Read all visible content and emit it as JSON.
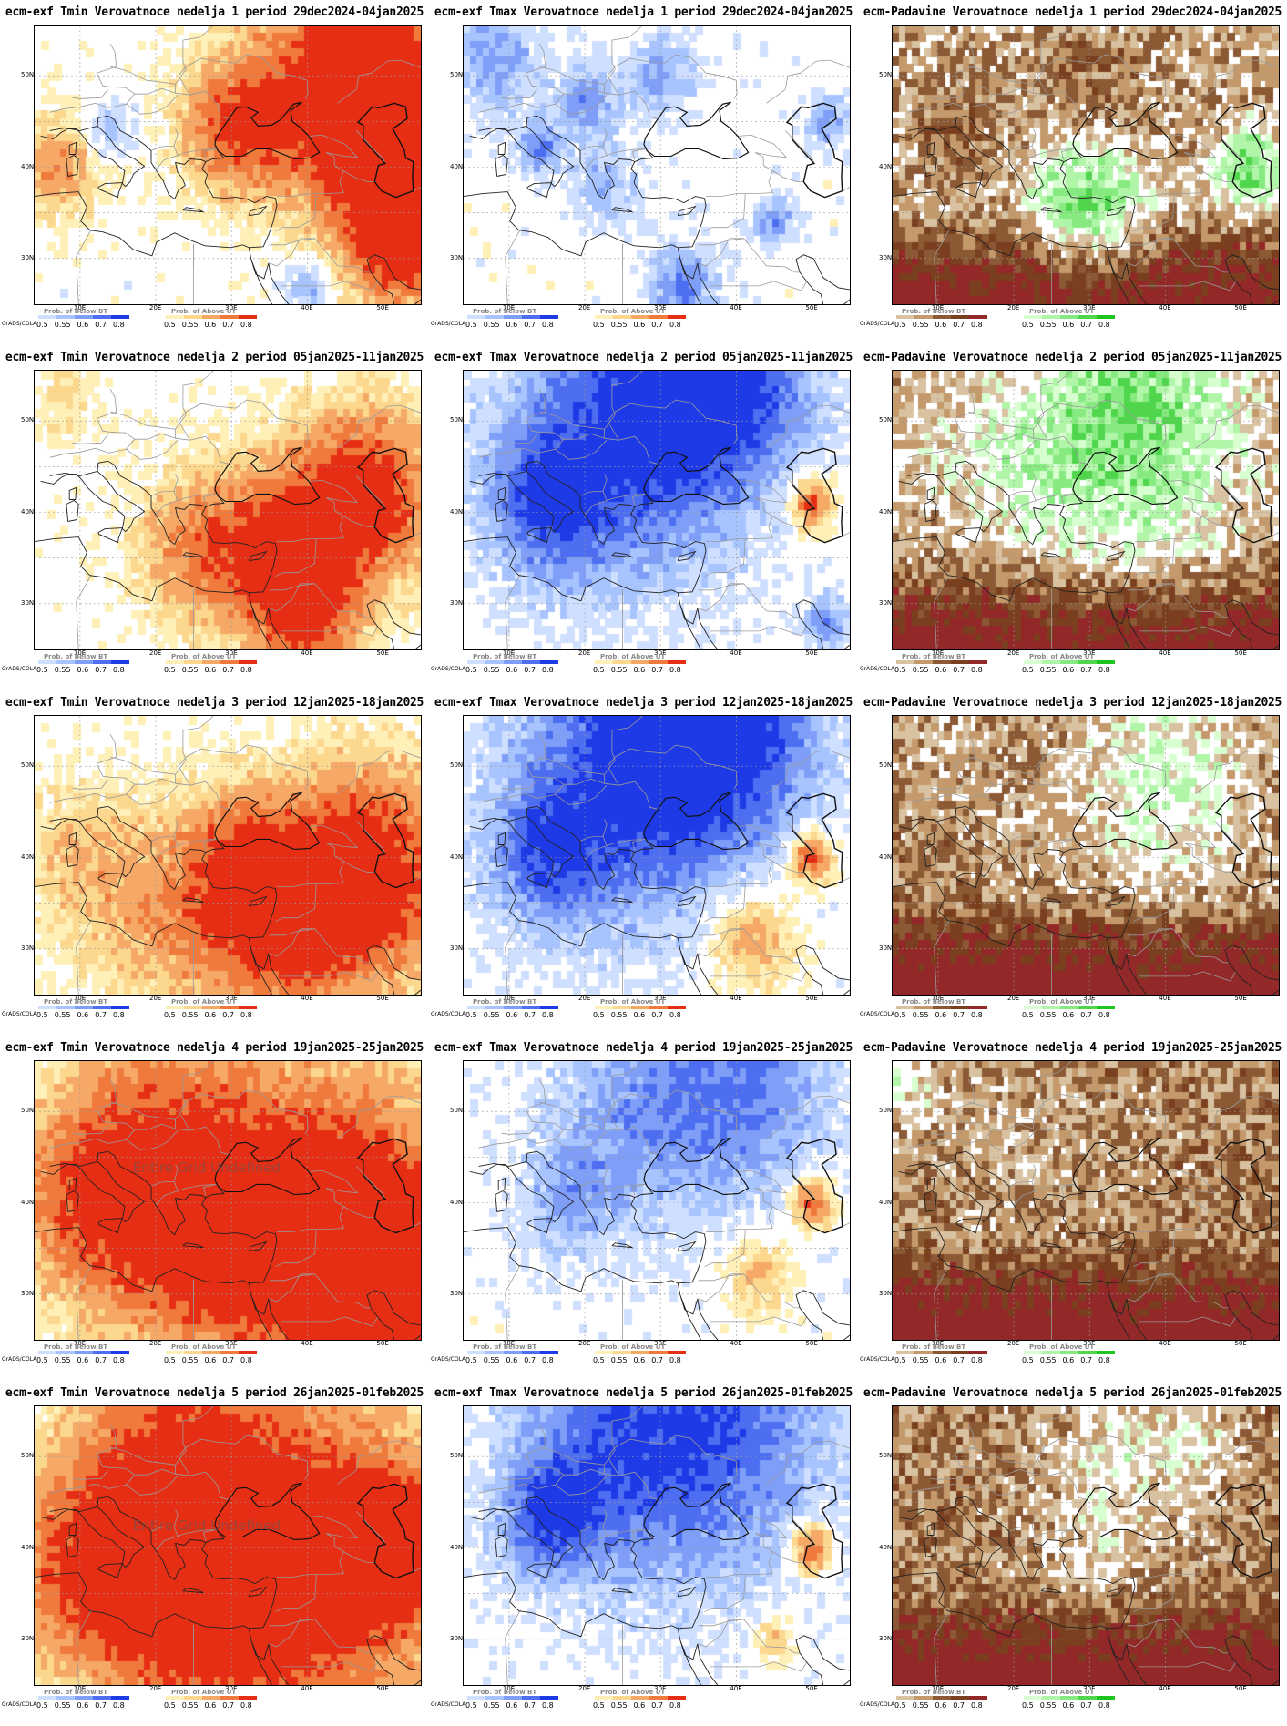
{
  "grads_label": "GrADS/COLA",
  "legend": {
    "below_title": "Prob. of Below BT",
    "above_title": "Prob. of Above UT",
    "labels": [
      "0.5",
      "0.55",
      "0.6",
      "0.7",
      "0.8"
    ],
    "tmin_below_colors": [
      "#cfdfff",
      "#a8c4ff",
      "#7e9ef8",
      "#4d6ef0",
      "#1e3ae6"
    ],
    "tmin_above_colors": [
      "#fff0b8",
      "#fcd78e",
      "#f6a867",
      "#ef7a3c",
      "#e62e14"
    ],
    "precip_below_colors": [
      "#d9c2a1",
      "#c49a6c",
      "#8b5a35",
      "#7a3f1f",
      "#932828"
    ],
    "precip_above_colors": [
      "#d8ffd0",
      "#b0f5a8",
      "#86ea80",
      "#4fd64c",
      "#1ec41e"
    ]
  },
  "axis": {
    "lat_labels": [
      "50N",
      "40N",
      "30N"
    ],
    "lon_labels": [
      "10E",
      "20E",
      "30E",
      "40E",
      "50E"
    ]
  },
  "overlay_text": "Entire Grid Undefined",
  "panels": [
    {
      "title": "ecm-exf Tmin Verovatnoce nedelja 1 period 29dec2024-04jan2025",
      "variable": "tmin",
      "week": 1
    },
    {
      "title": "ecm-exf Tmax Verovatnoce nedelja 1 period 29dec2024-04jan2025",
      "variable": "tmax",
      "week": 1
    },
    {
      "title": "ecm-Padavine Verovatnoce nedelja 1 period 29dec2024-04jan2025",
      "variable": "precip",
      "week": 1
    },
    {
      "title": "ecm-exf Tmin Verovatnoce nedelja 2 period 05jan2025-11jan2025",
      "variable": "tmin",
      "week": 2
    },
    {
      "title": "ecm-exf Tmax Verovatnoce nedelja 2 period 05jan2025-11jan2025",
      "variable": "tmax",
      "week": 2
    },
    {
      "title": "ecm-Padavine Verovatnoce nedelja 2 period 05jan2025-11jan2025",
      "variable": "precip",
      "week": 2
    },
    {
      "title": "ecm-exf Tmin Verovatnoce nedelja 3 period 12jan2025-18jan2025",
      "variable": "tmin",
      "week": 3
    },
    {
      "title": "ecm-exf Tmax Verovatnoce nedelja 3 period 12jan2025-18jan2025",
      "variable": "tmax",
      "week": 3
    },
    {
      "title": "ecm-Padavine Verovatnoce nedelja 3 period 12jan2025-18jan2025",
      "variable": "precip",
      "week": 3
    },
    {
      "title": "ecm-exf Tmin Verovatnoce nedelja 4 period 19jan2025-25jan2025",
      "variable": "tmin",
      "week": 4
    },
    {
      "title": "ecm-exf Tmax Verovatnoce nedelja 4 period 19jan2025-25jan2025",
      "variable": "tmax",
      "week": 4
    },
    {
      "title": "ecm-Padavine Verovatnoce nedelja 4 period 19jan2025-25jan2025",
      "variable": "precip",
      "week": 4
    },
    {
      "title": "ecm-exf Tmin Verovatnoce nedelja 5 period 26jan2025-01feb2025",
      "variable": "tmin",
      "week": 5
    },
    {
      "title": "ecm-exf Tmax Verovatnoce nedelja 5 period 26jan2025-01feb2025",
      "variable": "tmax",
      "week": 5
    },
    {
      "title": "ecm-Padavine Verovatnoce nedelja 5 period 26jan2025-01feb2025",
      "variable": "precip",
      "week": 5
    }
  ]
}
